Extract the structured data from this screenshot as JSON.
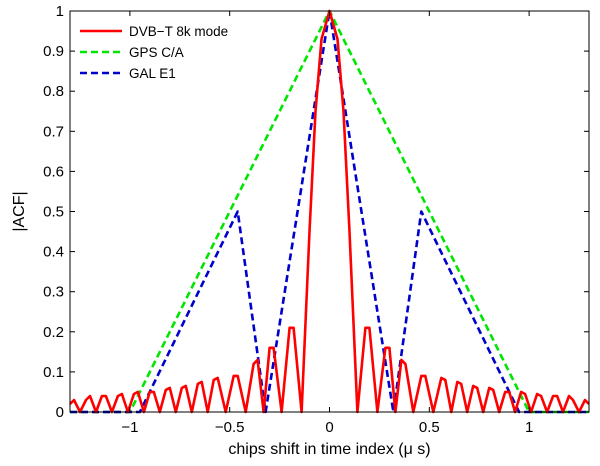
{
  "chart_data": {
    "type": "line",
    "xlabel": "chips shift in time index (μ s)",
    "ylabel": "|ACF|",
    "xlim": [
      -1.3,
      1.3
    ],
    "ylim": [
      0,
      1
    ],
    "xticks": [
      -1,
      -0.5,
      0,
      0.5,
      1
    ],
    "xtick_labels": [
      "−1",
      "−0.5",
      "0",
      "0.5",
      "1"
    ],
    "yticks": [
      0,
      0.1,
      0.2,
      0.3,
      0.4,
      0.5,
      0.6,
      0.7,
      0.8,
      0.9,
      1
    ],
    "ytick_labels": [
      "0",
      "0.1",
      "0.2",
      "0.3",
      "0.4",
      "0.5",
      "0.6",
      "0.7",
      "0.8",
      "0.9",
      "1"
    ],
    "grid": false,
    "legend_position": "top-left",
    "series": [
      {
        "name": "DVB−T 8k mode",
        "color": "#ff0000",
        "style": "solid",
        "x": [
          -1.3,
          -1.28,
          -1.25,
          -1.22,
          -1.2,
          -1.17,
          -1.14,
          -1.12,
          -1.09,
          -1.06,
          -1.04,
          -1.01,
          -0.98,
          -0.96,
          -0.93,
          -0.9,
          -0.88,
          -0.85,
          -0.82,
          -0.8,
          -0.77,
          -0.74,
          -0.72,
          -0.69,
          -0.66,
          -0.64,
          -0.61,
          -0.58,
          -0.56,
          -0.52,
          -0.48,
          -0.46,
          -0.42,
          -0.38,
          -0.36,
          -0.33,
          -0.3,
          -0.28,
          -0.24,
          -0.2,
          -0.18,
          -0.14,
          -0.1,
          -0.07,
          -0.04,
          0,
          0.04,
          0.07,
          0.1,
          0.14,
          0.18,
          0.2,
          0.24,
          0.28,
          0.3,
          0.33,
          0.36,
          0.38,
          0.42,
          0.46,
          0.48,
          0.52,
          0.56,
          0.58,
          0.61,
          0.64,
          0.66,
          0.69,
          0.72,
          0.74,
          0.77,
          0.8,
          0.82,
          0.85,
          0.88,
          0.9,
          0.93,
          0.96,
          0.98,
          1.01,
          1.04,
          1.06,
          1.09,
          1.12,
          1.14,
          1.17,
          1.2,
          1.22,
          1.25,
          1.28,
          1.3
        ],
        "y": [
          0.02,
          0.03,
          0.0,
          0.03,
          0.04,
          0.0,
          0.04,
          0.04,
          0.0,
          0.04,
          0.045,
          0.0,
          0.045,
          0.05,
          0.0,
          0.05,
          0.05,
          0.0,
          0.055,
          0.06,
          0.0,
          0.06,
          0.065,
          0.0,
          0.07,
          0.075,
          0.0,
          0.08,
          0.085,
          0.0,
          0.09,
          0.09,
          0.0,
          0.12,
          0.13,
          0.0,
          0.16,
          0.16,
          0.0,
          0.21,
          0.21,
          0.0,
          0.45,
          0.75,
          0.93,
          1.0,
          0.93,
          0.75,
          0.45,
          0.0,
          0.21,
          0.21,
          0.0,
          0.16,
          0.16,
          0.0,
          0.13,
          0.12,
          0.0,
          0.09,
          0.09,
          0.0,
          0.085,
          0.08,
          0.0,
          0.075,
          0.07,
          0.0,
          0.065,
          0.06,
          0.0,
          0.06,
          0.055,
          0.0,
          0.05,
          0.05,
          0.0,
          0.05,
          0.045,
          0.0,
          0.045,
          0.04,
          0.0,
          0.04,
          0.04,
          0.0,
          0.04,
          0.03,
          0.0,
          0.03,
          0.02
        ]
      },
      {
        "name": "GPS C/A",
        "color": "#00e600",
        "style": "dashed",
        "x": [
          -1.3,
          -1.0,
          0.0,
          1.0,
          1.3
        ],
        "y": [
          0.0,
          0.0,
          1.0,
          0.0,
          0.0
        ]
      },
      {
        "name": "GAL E1",
        "color": "#0000cc",
        "style": "dashed",
        "x": [
          -1.3,
          -0.95,
          -0.46,
          -0.32,
          0.0,
          0.32,
          0.46,
          0.95,
          1.3
        ],
        "y": [
          0.0,
          0.0,
          0.5,
          0.0,
          1.0,
          0.0,
          0.5,
          0.0,
          0.0
        ]
      }
    ]
  }
}
